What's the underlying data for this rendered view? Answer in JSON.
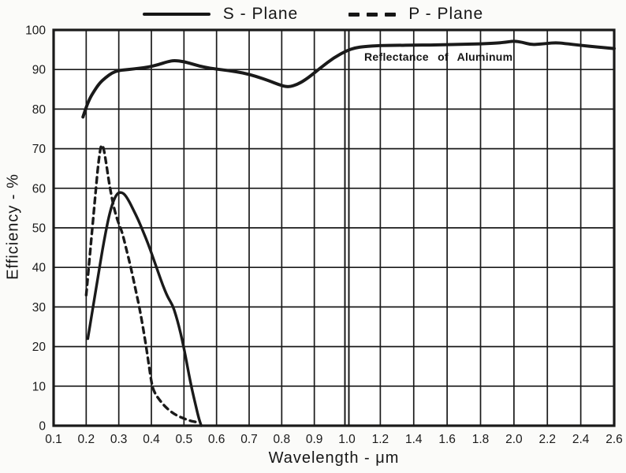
{
  "figure": {
    "legend": [
      {
        "label": "S - Plane",
        "style": "solid"
      },
      {
        "label": "P - Plane",
        "style": "dashed"
      }
    ],
    "annotation": "Reflectance of Aluminum",
    "colors": {
      "ink": "#1a1a1a",
      "background": "#ffffff",
      "grid": "#222222"
    }
  },
  "chart_data": {
    "type": "line",
    "title": "",
    "xlabel": "Wavelength - μm",
    "ylabel": "Efficiency - %",
    "ylim": [
      0,
      100
    ],
    "grid": true,
    "legend_position": "top-center",
    "x_axis": {
      "break_at": 1.0,
      "left_range": [
        0.1,
        1.0
      ],
      "right_range": [
        1.0,
        2.6
      ],
      "note": "scale change at 1.0: 0.1/div left of break, 0.2/div right of break"
    },
    "x_tick_values": [
      0.1,
      0.2,
      0.3,
      0.4,
      0.5,
      0.6,
      0.7,
      0.8,
      0.9,
      1.0,
      1.2,
      1.4,
      1.6,
      1.8,
      2.0,
      2.2,
      2.4,
      2.6
    ],
    "x_tick_labels": [
      "0.1",
      "0.2",
      "0.3",
      "0.4",
      "0.5",
      "0.6",
      "0.7",
      "0.8",
      "0.9",
      "1.0",
      "1.2",
      "1.4",
      "1.6",
      "1.8",
      "2.0",
      "2.2",
      "2.4",
      "2.6"
    ],
    "y_tick_values": [
      0,
      10,
      20,
      30,
      40,
      50,
      60,
      70,
      80,
      90,
      100
    ],
    "y_tick_labels": [
      "0",
      "10",
      "20",
      "30",
      "40",
      "50",
      "60",
      "70",
      "80",
      "90",
      "100"
    ],
    "series": [
      {
        "name": "S - Plane",
        "line": "solid",
        "points": [
          [
            0.205,
            22
          ],
          [
            0.21,
            24.5
          ],
          [
            0.218,
            28.5
          ],
          [
            0.225,
            32
          ],
          [
            0.232,
            35.5
          ],
          [
            0.24,
            39.5
          ],
          [
            0.25,
            44.5
          ],
          [
            0.26,
            49
          ],
          [
            0.27,
            53
          ],
          [
            0.28,
            56
          ],
          [
            0.29,
            58
          ],
          [
            0.3,
            59
          ],
          [
            0.315,
            58.8
          ],
          [
            0.33,
            57
          ],
          [
            0.345,
            54.5
          ],
          [
            0.36,
            52
          ],
          [
            0.375,
            49
          ],
          [
            0.39,
            46
          ],
          [
            0.405,
            42.5
          ],
          [
            0.42,
            39
          ],
          [
            0.435,
            35.5
          ],
          [
            0.45,
            32.5
          ],
          [
            0.465,
            30.5
          ],
          [
            0.475,
            28
          ],
          [
            0.485,
            25
          ],
          [
            0.495,
            21.5
          ],
          [
            0.505,
            17.5
          ],
          [
            0.515,
            13
          ],
          [
            0.525,
            9
          ],
          [
            0.535,
            5.5
          ],
          [
            0.545,
            2
          ],
          [
            0.553,
            0
          ]
        ]
      },
      {
        "name": "P - Plane",
        "line": "dashed",
        "points": [
          [
            0.2,
            33
          ],
          [
            0.205,
            37.5
          ],
          [
            0.21,
            42
          ],
          [
            0.215,
            46.5
          ],
          [
            0.22,
            51
          ],
          [
            0.225,
            55.5
          ],
          [
            0.23,
            60
          ],
          [
            0.235,
            64.5
          ],
          [
            0.24,
            68
          ],
          [
            0.245,
            70.7
          ],
          [
            0.25,
            71
          ],
          [
            0.255,
            69.5
          ],
          [
            0.262,
            66
          ],
          [
            0.27,
            61.5
          ],
          [
            0.28,
            57
          ],
          [
            0.29,
            53.5
          ],
          [
            0.3,
            51
          ],
          [
            0.31,
            49
          ],
          [
            0.322,
            45
          ],
          [
            0.337,
            40
          ],
          [
            0.35,
            35
          ],
          [
            0.363,
            30
          ],
          [
            0.374,
            25
          ],
          [
            0.384,
            20
          ],
          [
            0.393,
            15
          ],
          [
            0.402,
            10
          ],
          [
            0.412,
            8
          ],
          [
            0.425,
            6.5
          ],
          [
            0.44,
            5
          ],
          [
            0.46,
            3.5
          ],
          [
            0.48,
            2.5
          ],
          [
            0.5,
            1.8
          ],
          [
            0.52,
            1.2
          ],
          [
            0.545,
            0.8
          ]
        ]
      },
      {
        "name": "Reflectance of Aluminum",
        "line": "solid",
        "points": [
          [
            0.19,
            78
          ],
          [
            0.2,
            80.5
          ],
          [
            0.21,
            82.5
          ],
          [
            0.22,
            84
          ],
          [
            0.24,
            86.5
          ],
          [
            0.26,
            88
          ],
          [
            0.28,
            89.2
          ],
          [
            0.3,
            89.8
          ],
          [
            0.33,
            90
          ],
          [
            0.36,
            90.3
          ],
          [
            0.39,
            90.6
          ],
          [
            0.42,
            91.2
          ],
          [
            0.45,
            92
          ],
          [
            0.47,
            92.3
          ],
          [
            0.5,
            92
          ],
          [
            0.53,
            91.3
          ],
          [
            0.56,
            90.6
          ],
          [
            0.6,
            90.1
          ],
          [
            0.64,
            89.7
          ],
          [
            0.68,
            89.2
          ],
          [
            0.72,
            88.3
          ],
          [
            0.76,
            87.2
          ],
          [
            0.79,
            86.2
          ],
          [
            0.82,
            85.5
          ],
          [
            0.85,
            86.3
          ],
          [
            0.88,
            87.8
          ],
          [
            0.92,
            90.5
          ],
          [
            0.96,
            93
          ],
          [
            1.0,
            94.8
          ],
          [
            1.05,
            95.5
          ],
          [
            1.1,
            95.8
          ],
          [
            1.2,
            96.1
          ],
          [
            1.3,
            96.1
          ],
          [
            1.4,
            96.2
          ],
          [
            1.5,
            96.2
          ],
          [
            1.6,
            96.3
          ],
          [
            1.7,
            96.4
          ],
          [
            1.8,
            96.5
          ],
          [
            1.9,
            96.7
          ],
          [
            1.95,
            96.9
          ],
          [
            2.0,
            97.2
          ],
          [
            2.05,
            96.9
          ],
          [
            2.1,
            96.3
          ],
          [
            2.15,
            96.4
          ],
          [
            2.2,
            96.6
          ],
          [
            2.25,
            96.8
          ],
          [
            2.3,
            96.6
          ],
          [
            2.4,
            96.1
          ],
          [
            2.5,
            95.7
          ],
          [
            2.6,
            95.3
          ]
        ]
      }
    ]
  }
}
